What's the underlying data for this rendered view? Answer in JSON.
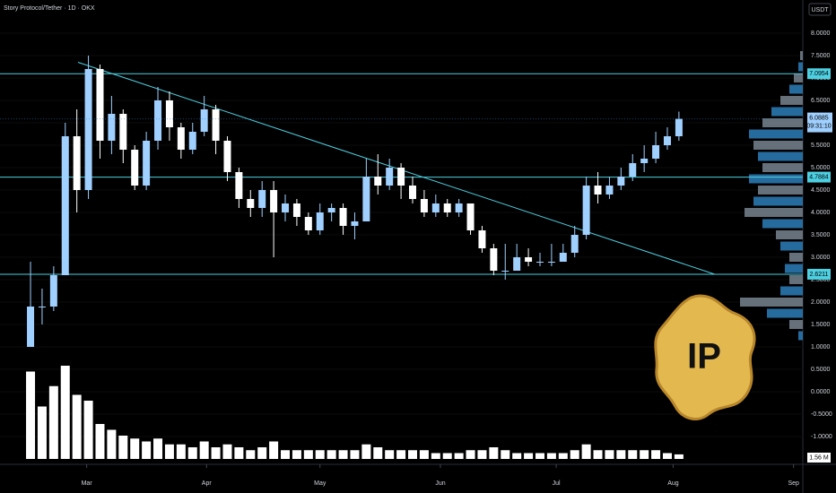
{
  "chart_data": {
    "type": "candlestick",
    "title": "Story Protocol/Tether · 1D · OKX",
    "currency": "USDT",
    "up_color": "#9fd0ff",
    "down_color": "#ffffff",
    "level_color": "#4dd0e1",
    "volume_color": "#ffffff",
    "xlim": [
      -0.2,
      67.2
    ],
    "xticks": [
      {
        "value": 5.35,
        "label": "Mar"
      },
      {
        "value": 15.7,
        "label": "Apr"
      },
      {
        "value": 25.5,
        "label": "May"
      },
      {
        "value": 35.9,
        "label": "Jun"
      },
      {
        "value": 45.9,
        "label": "Jul"
      },
      {
        "value": 56.0,
        "label": "Aug"
      },
      {
        "value": 66.4,
        "label": "Sep"
      }
    ],
    "ylim": [
      -1.5,
      8.5
    ],
    "yticks": [
      {
        "value": 8,
        "label": "8.0000"
      },
      {
        "value": 7.5,
        "label": "7.5000"
      },
      {
        "value": 7,
        "label": "7.0000"
      },
      {
        "value": 6.5,
        "label": "6.5000"
      },
      {
        "value": 6,
        "label": "6.0000"
      },
      {
        "value": 5.5,
        "label": "5.5000"
      },
      {
        "value": 5,
        "label": "5.0000"
      },
      {
        "value": 4.5,
        "label": "4.5000"
      },
      {
        "value": 4,
        "label": "4.0000"
      },
      {
        "value": 3.5,
        "label": "3.5000"
      },
      {
        "value": 3,
        "label": "3.0000"
      },
      {
        "value": 2.5,
        "label": "2.5000"
      },
      {
        "value": 2,
        "label": "2.0000"
      },
      {
        "value": 1.5,
        "label": "1.5000"
      },
      {
        "value": 1,
        "label": "1.0000"
      },
      {
        "value": 0.5,
        "label": "0.5000"
      },
      {
        "value": 0,
        "label": "0.0000"
      },
      {
        "value": -0.5,
        "label": "-0.5000"
      },
      {
        "value": -1,
        "label": "-1.0000"
      }
    ],
    "open": [
      1.0,
      1.9,
      1.9,
      2.6,
      5.7,
      4.5,
      7.2,
      5.6,
      6.2,
      5.4,
      4.6,
      5.6,
      6.5,
      5.9,
      5.4,
      5.8,
      6.3,
      5.6,
      4.9,
      4.3,
      4.1,
      4.5,
      4.0,
      4.2,
      3.9,
      3.6,
      4.0,
      4.1,
      3.7,
      3.8,
      4.8,
      4.6,
      5.0,
      4.6,
      4.3,
      4.0,
      4.2,
      4.0,
      4.2,
      3.6,
      3.2,
      2.7,
      2.7,
      3.0,
      2.9,
      2.9,
      2.9,
      3.1,
      3.5,
      4.6,
      4.4,
      4.6,
      4.8,
      5.1,
      5.2,
      5.5,
      5.7
    ],
    "high": [
      2.9,
      2.3,
      2.8,
      6.0,
      6.3,
      7.5,
      7.3,
      6.6,
      6.3,
      5.5,
      5.8,
      6.8,
      6.7,
      6.0,
      6.0,
      6.6,
      6.4,
      5.7,
      5.0,
      4.5,
      4.7,
      4.7,
      4.4,
      4.3,
      4.0,
      4.2,
      4.2,
      4.2,
      4.0,
      5.2,
      5.3,
      5.2,
      5.1,
      4.8,
      4.5,
      4.4,
      4.3,
      4.3,
      4.2,
      3.7,
      3.3,
      3.3,
      3.3,
      3.2,
      3.1,
      3.3,
      3.3,
      3.7,
      4.8,
      4.9,
      4.8,
      5.0,
      5.3,
      5.5,
      5.8,
      5.9,
      6.25
    ],
    "low": [
      1.0,
      1.5,
      1.8,
      2.6,
      4.0,
      4.3,
      5.2,
      5.3,
      5.1,
      4.5,
      4.5,
      5.4,
      5.6,
      5.2,
      5.3,
      5.7,
      5.3,
      4.7,
      4.1,
      3.9,
      3.9,
      3.0,
      3.8,
      3.7,
      3.5,
      3.5,
      3.8,
      3.5,
      3.4,
      3.8,
      4.4,
      4.5,
      4.3,
      4.2,
      3.9,
      3.9,
      3.9,
      3.9,
      3.5,
      3.1,
      2.6,
      2.5,
      2.7,
      2.8,
      2.8,
      2.8,
      2.9,
      3.0,
      3.4,
      4.2,
      4.3,
      4.5,
      4.7,
      4.9,
      5.1,
      5.4,
      5.6
    ],
    "close": [
      1.9,
      1.9,
      2.6,
      5.7,
      4.5,
      7.2,
      5.6,
      6.2,
      5.4,
      4.6,
      5.6,
      6.5,
      5.9,
      5.4,
      5.8,
      6.3,
      5.6,
      4.9,
      4.3,
      4.1,
      4.5,
      4.0,
      4.2,
      3.9,
      3.6,
      4.0,
      4.1,
      3.7,
      3.8,
      4.8,
      4.6,
      5.0,
      4.6,
      4.3,
      4.0,
      4.2,
      4.0,
      4.2,
      3.6,
      3.2,
      2.7,
      2.7,
      3.0,
      2.9,
      2.9,
      2.9,
      3.1,
      3.5,
      4.6,
      4.4,
      4.6,
      4.8,
      5.1,
      5.2,
      5.5,
      5.7,
      6.0885
    ],
    "volume": {
      "lim": [
        0,
        40
      ],
      "values": [
        30,
        18,
        25,
        32,
        22,
        20,
        12,
        10,
        8,
        7,
        6,
        7,
        5,
        5,
        4,
        6,
        4,
        5,
        4,
        3,
        4,
        6,
        3,
        3,
        3,
        3,
        3,
        3,
        3,
        5,
        4,
        3,
        3,
        3,
        3,
        2,
        2,
        2,
        3,
        3,
        4,
        3,
        2,
        2,
        2,
        2,
        2,
        3,
        5,
        3,
        3,
        3,
        3,
        3,
        3,
        2,
        1.56
      ],
      "last_label": "1.56 M"
    },
    "levels": [
      {
        "value": 7.0954,
        "label": "7.0954"
      },
      {
        "value": 4.7884,
        "label": "4.7884"
      },
      {
        "value": 2.6211,
        "label": "2.6211"
      }
    ],
    "current": {
      "value": 6.0885,
      "label": "6.0885",
      "countdown": "09:31:10"
    },
    "trendline": {
      "x": [
        4.6,
        59.6
      ],
      "y": [
        7.35,
        2.62
      ]
    },
    "volume_profile": {
      "lim": [
        0,
        100
      ],
      "prices": [
        1.25,
        1.5,
        1.75,
        2.0,
        2.25,
        2.5,
        2.75,
        3.0,
        3.25,
        3.5,
        3.75,
        4.0,
        4.25,
        4.5,
        4.75,
        5.0,
        5.25,
        5.5,
        5.75,
        6.0,
        6.25,
        6.5,
        6.75,
        7.0,
        7.25,
        7.5
      ],
      "values": [
        5,
        15,
        40,
        70,
        25,
        15,
        20,
        15,
        25,
        30,
        45,
        65,
        55,
        50,
        60,
        45,
        50,
        55,
        60,
        45,
        35,
        25,
        15,
        10,
        5,
        3
      ]
    },
    "logo": "IP"
  }
}
